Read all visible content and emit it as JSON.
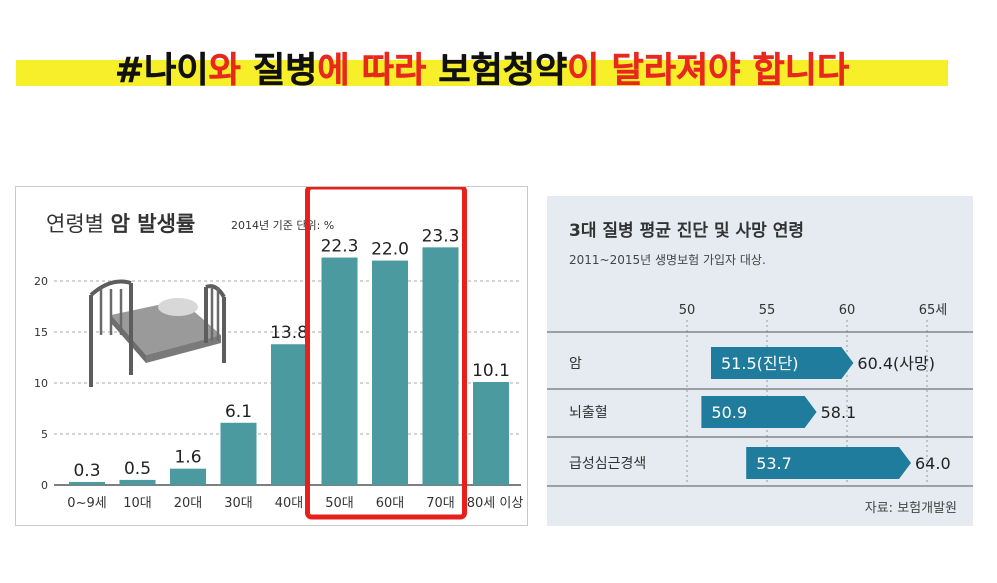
{
  "banner": {
    "segments": [
      {
        "text": "#나이",
        "color": "#111111"
      },
      {
        "text": "와 ",
        "color": "#e8281d"
      },
      {
        "text": "질병",
        "color": "#111111"
      },
      {
        "text": "에 따라 ",
        "color": "#e8281d"
      },
      {
        "text": "보험청약",
        "color": "#111111"
      },
      {
        "text": "이 달라져야 합니다",
        "color": "#e8281d"
      }
    ],
    "highlight_color": "#f7ef2a"
  },
  "colors": {
    "bar": "#4a9aa0",
    "highlight_box": "#e8201c",
    "arrow": "#1f7c9c",
    "right_panel_bg": "#e5ebf0"
  },
  "chart_data": [
    {
      "type": "bar",
      "title_plain": "연령별 ",
      "title_bold": "암 발생률",
      "subtitle": "2014년 기준 단위: %",
      "categories": [
        "0~9세",
        "10대",
        "20대",
        "30대",
        "40대",
        "50대",
        "60대",
        "70대",
        "80세 이상"
      ],
      "values": [
        0.3,
        0.5,
        1.6,
        6.1,
        13.8,
        22.3,
        22.0,
        23.3,
        10.1
      ],
      "value_labels": [
        "0.3",
        "0.5",
        "1.6",
        "6.1",
        "13.8",
        "22.3",
        "22.0",
        "23.3",
        "10.1"
      ],
      "yticks": [
        0,
        5,
        10,
        15,
        20
      ],
      "ylim": [
        0,
        25
      ],
      "grid": true,
      "highlighted_categories": [
        "50대",
        "60대",
        "70대"
      ],
      "decoration_icon": "bed-icon"
    },
    {
      "type": "bar",
      "orientation": "horizontal-range",
      "title": "3대 질병 평균 진단 및 사망 연령",
      "subtitle": "2011~2015년 생명보험 가입자 대상.",
      "xticks": [
        "50",
        "55",
        "60",
        "65세"
      ],
      "xtick_values": [
        50,
        55,
        60,
        65
      ],
      "xlim": [
        50,
        65
      ],
      "categories": [
        "암",
        "뇌출혈",
        "급성심근경색"
      ],
      "diagnosis_ages": [
        51.5,
        50.9,
        53.7
      ],
      "death_ages": [
        60.4,
        58.1,
        64.0
      ],
      "diagnosis_labels": [
        "51.5(진단)",
        "50.9",
        "53.7"
      ],
      "death_labels": [
        "60.4(사망)",
        "58.1",
        "64.0"
      ],
      "source": "자료: 보험개발원"
    }
  ]
}
